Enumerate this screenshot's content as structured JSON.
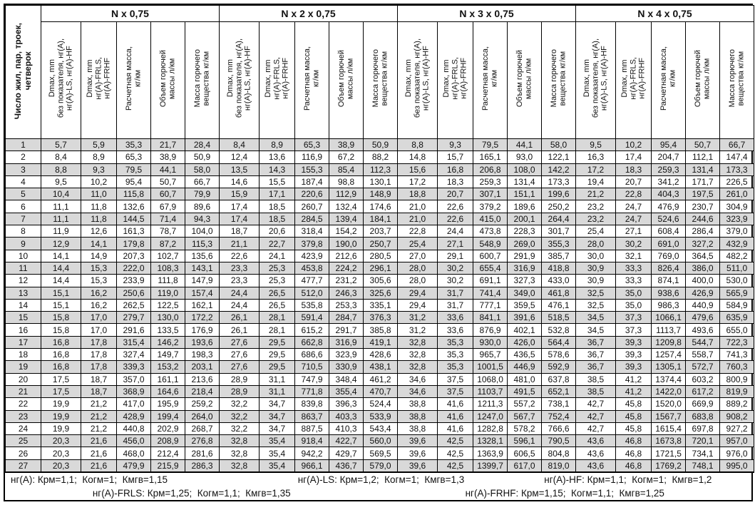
{
  "corner_header": "Число жил, пар, троек,\nчетверок",
  "sub_headers": [
    "Dmax, mm\nбез показателя, нг(А),\nнг(А)-LS, нг(А)-HF",
    "Dmax, mm\nнг(А)-FRLS,\nнг(А)-FRHF",
    "Расчетная масса,\nкг/км",
    "Объем горючей\nмассы л/км",
    "Масса горючего\nвещества кг/км"
  ],
  "row_numbers": [
    1,
    2,
    3,
    4,
    5,
    6,
    7,
    8,
    9,
    10,
    11,
    12,
    13,
    14,
    15,
    16,
    17,
    18,
    19,
    20,
    21,
    22,
    23,
    24,
    25,
    26,
    27
  ],
  "groups": [
    {
      "label": "N x 0,75",
      "rows": [
        [
          "5,7",
          "5,9",
          "35,3",
          "21,7",
          "28,4"
        ],
        [
          "8,4",
          "8,9",
          "65,3",
          "38,9",
          "50,9"
        ],
        [
          "8,8",
          "9,3",
          "79,5",
          "44,1",
          "58,0"
        ],
        [
          "9,5",
          "10,2",
          "95,4",
          "50,7",
          "66,7"
        ],
        [
          "10,4",
          "11,0",
          "115,8",
          "60,7",
          "79,9"
        ],
        [
          "11,1",
          "11,8",
          "132,6",
          "67,9",
          "89,6"
        ],
        [
          "11,1",
          "11,8",
          "144,5",
          "71,4",
          "94,3"
        ],
        [
          "11,9",
          "12,6",
          "161,3",
          "78,7",
          "104,0"
        ],
        [
          "12,9",
          "14,1",
          "179,8",
          "87,2",
          "115,3"
        ],
        [
          "14,1",
          "14,9",
          "207,3",
          "102,7",
          "135,6"
        ],
        [
          "14,4",
          "15,3",
          "222,0",
          "108,3",
          "143,1"
        ],
        [
          "14,4",
          "15,3",
          "233,9",
          "111,8",
          "147,9"
        ],
        [
          "15,1",
          "16,2",
          "250,6",
          "119,0",
          "157,4"
        ],
        [
          "15,1",
          "16,2",
          "262,5",
          "122,5",
          "162,1"
        ],
        [
          "15,8",
          "17,0",
          "279,7",
          "130,0",
          "172,2"
        ],
        [
          "15,8",
          "17,0",
          "291,6",
          "133,5",
          "176,9"
        ],
        [
          "16,8",
          "17,8",
          "315,4",
          "146,2",
          "193,6"
        ],
        [
          "16,8",
          "17,8",
          "327,4",
          "149,7",
          "198,3"
        ],
        [
          "16,8",
          "17,8",
          "339,3",
          "153,2",
          "203,1"
        ],
        [
          "17,5",
          "18,7",
          "357,0",
          "161,1",
          "213,6"
        ],
        [
          "17,5",
          "18,7",
          "368,9",
          "164,6",
          "218,4"
        ],
        [
          "19,9",
          "21,2",
          "417,0",
          "195,9",
          "259,2"
        ],
        [
          "19,9",
          "21,2",
          "428,9",
          "199,4",
          "264,0"
        ],
        [
          "19,9",
          "21,2",
          "440,8",
          "202,9",
          "268,7"
        ],
        [
          "20,3",
          "21,6",
          "456,0",
          "208,9",
          "276,8"
        ],
        [
          "20,3",
          "21,6",
          "468,0",
          "212,4",
          "281,6"
        ],
        [
          "20,3",
          "21,6",
          "479,9",
          "215,9",
          "286,3"
        ]
      ]
    },
    {
      "label": "N x 2 x 0,75",
      "rows": [
        [
          "8,4",
          "8,9",
          "65,3",
          "38,9",
          "50,9"
        ],
        [
          "12,4",
          "13,6",
          "116,9",
          "67,2",
          "88,2"
        ],
        [
          "13,5",
          "14,3",
          "155,3",
          "85,4",
          "112,3"
        ],
        [
          "14,6",
          "15,5",
          "187,4",
          "98,8",
          "130,1"
        ],
        [
          "15,9",
          "17,1",
          "220,6",
          "112,9",
          "148,9"
        ],
        [
          "17,4",
          "18,5",
          "260,7",
          "132,4",
          "174,6"
        ],
        [
          "17,4",
          "18,5",
          "284,5",
          "139,4",
          "184,1"
        ],
        [
          "18,7",
          "20,6",
          "318,4",
          "154,2",
          "203,7"
        ],
        [
          "21,1",
          "22,7",
          "379,8",
          "190,0",
          "250,7"
        ],
        [
          "22,6",
          "24,1",
          "423,9",
          "212,6",
          "280,5"
        ],
        [
          "23,3",
          "25,3",
          "453,8",
          "224,2",
          "296,1"
        ],
        [
          "23,3",
          "25,3",
          "477,7",
          "231,2",
          "305,6"
        ],
        [
          "24,4",
          "26,5",
          "512,0",
          "246,3",
          "325,6"
        ],
        [
          "24,4",
          "26,5",
          "535,8",
          "253,3",
          "335,1"
        ],
        [
          "26,1",
          "28,1",
          "591,4",
          "284,7",
          "376,3"
        ],
        [
          "26,1",
          "28,1",
          "615,2",
          "291,7",
          "385,8"
        ],
        [
          "27,6",
          "29,5",
          "662,8",
          "316,9",
          "419,1"
        ],
        [
          "27,6",
          "29,5",
          "686,6",
          "323,9",
          "428,6"
        ],
        [
          "27,6",
          "29,5",
          "710,5",
          "330,9",
          "438,1"
        ],
        [
          "28,9",
          "31,1",
          "747,9",
          "348,4",
          "461,2"
        ],
        [
          "28,9",
          "31,1",
          "771,8",
          "355,4",
          "470,7"
        ],
        [
          "32,2",
          "34,7",
          "839,8",
          "396,3",
          "524,4"
        ],
        [
          "32,2",
          "34,7",
          "863,7",
          "403,3",
          "533,9"
        ],
        [
          "32,2",
          "34,7",
          "887,5",
          "410,3",
          "543,4"
        ],
        [
          "32,8",
          "35,4",
          "918,4",
          "422,7",
          "560,0"
        ],
        [
          "32,8",
          "35,4",
          "942,2",
          "429,7",
          "569,5"
        ],
        [
          "32,8",
          "35,4",
          "966,1",
          "436,7",
          "579,0"
        ]
      ]
    },
    {
      "label": "N x 3 x 0,75",
      "rows": [
        [
          "8,8",
          "9,3",
          "79,5",
          "44,1",
          "58,0"
        ],
        [
          "14,8",
          "15,7",
          "165,1",
          "93,0",
          "122,1"
        ],
        [
          "15,6",
          "16,8",
          "206,8",
          "108,0",
          "142,2"
        ],
        [
          "17,2",
          "18,3",
          "259,3",
          "131,4",
          "173,3"
        ],
        [
          "18,8",
          "20,7",
          "307,1",
          "151,1",
          "199,6"
        ],
        [
          "21,0",
          "22,6",
          "379,2",
          "189,6",
          "250,2"
        ],
        [
          "21,0",
          "22,6",
          "415,0",
          "200,1",
          "264,4"
        ],
        [
          "22,8",
          "24,4",
          "473,8",
          "228,3",
          "301,7"
        ],
        [
          "25,4",
          "27,1",
          "548,9",
          "269,0",
          "355,3"
        ],
        [
          "27,0",
          "29,1",
          "600,7",
          "291,9",
          "385,7"
        ],
        [
          "28,0",
          "30,2",
          "655,4",
          "316,9",
          "418,8"
        ],
        [
          "28,0",
          "30,2",
          "691,1",
          "327,3",
          "433,0"
        ],
        [
          "29,4",
          "31,7",
          "741,4",
          "349,0",
          "461,8"
        ],
        [
          "29,4",
          "31,7",
          "777,1",
          "359,5",
          "476,1"
        ],
        [
          "31,2",
          "33,6",
          "841,1",
          "391,6",
          "518,5"
        ],
        [
          "31,2",
          "33,6",
          "876,9",
          "402,1",
          "532,8"
        ],
        [
          "32,8",
          "35,3",
          "930,0",
          "426,0",
          "564,4"
        ],
        [
          "32,8",
          "35,3",
          "965,7",
          "436,5",
          "578,6"
        ],
        [
          "32,8",
          "35,3",
          "1001,5",
          "446,9",
          "592,9"
        ],
        [
          "34,6",
          "37,5",
          "1068,0",
          "481,0",
          "637,8"
        ],
        [
          "34,6",
          "37,5",
          "1103,7",
          "491,5",
          "652,1"
        ],
        [
          "38,8",
          "41,6",
          "1211,3",
          "557,2",
          "738,1"
        ],
        [
          "38,8",
          "41,6",
          "1247,0",
          "567,7",
          "752,4"
        ],
        [
          "38,8",
          "41,6",
          "1282,8",
          "578,2",
          "766,6"
        ],
        [
          "39,6",
          "42,5",
          "1328,1",
          "596,1",
          "790,5"
        ],
        [
          "39,6",
          "42,5",
          "1363,9",
          "606,5",
          "804,8"
        ],
        [
          "39,6",
          "42,5",
          "1399,7",
          "617,0",
          "819,0"
        ]
      ]
    },
    {
      "label": "N x 4 x 0,75",
      "rows": [
        [
          "9,5",
          "10,2",
          "95,4",
          "50,7",
          "66,7"
        ],
        [
          "16,3",
          "17,4",
          "204,7",
          "112,1",
          "147,4"
        ],
        [
          "17,2",
          "18,3",
          "259,3",
          "131,4",
          "173,3"
        ],
        [
          "19,4",
          "20,7",
          "341,2",
          "171,7",
          "226,5"
        ],
        [
          "21,2",
          "22,8",
          "404,3",
          "197,5",
          "261,0"
        ],
        [
          "23,2",
          "24,7",
          "476,9",
          "230,7",
          "304,9"
        ],
        [
          "23,2",
          "24,7",
          "524,6",
          "244,6",
          "323,9"
        ],
        [
          "25,4",
          "27,1",
          "608,4",
          "286,4",
          "379,0"
        ],
        [
          "28,0",
          "30,2",
          "691,0",
          "327,2",
          "432,9"
        ],
        [
          "30,0",
          "32,1",
          "769,0",
          "364,5",
          "482,2"
        ],
        [
          "30,9",
          "33,3",
          "826,4",
          "386,0",
          "511,0"
        ],
        [
          "30,9",
          "33,3",
          "874,1",
          "400,0",
          "530,0"
        ],
        [
          "32,5",
          "35,0",
          "938,6",
          "426,9",
          "565,9"
        ],
        [
          "32,5",
          "35,0",
          "986,3",
          "440,9",
          "584,9"
        ],
        [
          "34,5",
          "37,3",
          "1066,1",
          "479,6",
          "635,9"
        ],
        [
          "34,5",
          "37,3",
          "1113,7",
          "493,6",
          "655,0"
        ],
        [
          "36,7",
          "39,3",
          "1209,8",
          "544,7",
          "722,3"
        ],
        [
          "36,7",
          "39,3",
          "1257,4",
          "558,7",
          "741,3"
        ],
        [
          "36,7",
          "39,3",
          "1305,1",
          "572,7",
          "760,3"
        ],
        [
          "38,5",
          "41,2",
          "1374,4",
          "603,2",
          "800,9"
        ],
        [
          "38,5",
          "41,2",
          "1422,0",
          "617,2",
          "819,9"
        ],
        [
          "42,7",
          "45,8",
          "1520,0",
          "669,9",
          "889,2"
        ],
        [
          "42,7",
          "45,8",
          "1567,7",
          "683,8",
          "908,2"
        ],
        [
          "42,7",
          "45,8",
          "1615,4",
          "697,8",
          "927,2"
        ],
        [
          "43,6",
          "46,8",
          "1673,8",
          "720,1",
          "957,0"
        ],
        [
          "43,6",
          "46,8",
          "1721,5",
          "734,1",
          "976,0"
        ],
        [
          "43,6",
          "46,8",
          "1769,2",
          "748,1",
          "995,0"
        ]
      ]
    }
  ],
  "footer": {
    "line1": [
      "нг(А): Крм=1,1;  Когм=1;  Кмгв=1,15",
      "нг(А)-LS: Крм=1,2;  Когм=1;  Кмгв=1,3",
      "нг(А)-HF: Крм=1,1;  Когм=1;  Кмгв=1,2"
    ],
    "line2": [
      "нг(А)-FRLS: Крм=1,25;  Когм=1,1;  Кмгв=1,35",
      "нг(А)-FRHF: Крм=1,15;  Когм=1,1;  Кмгв=1,25"
    ]
  },
  "colors": {
    "row_shade": "#d9d9d9",
    "border": "#000000",
    "background": "#ffffff"
  }
}
